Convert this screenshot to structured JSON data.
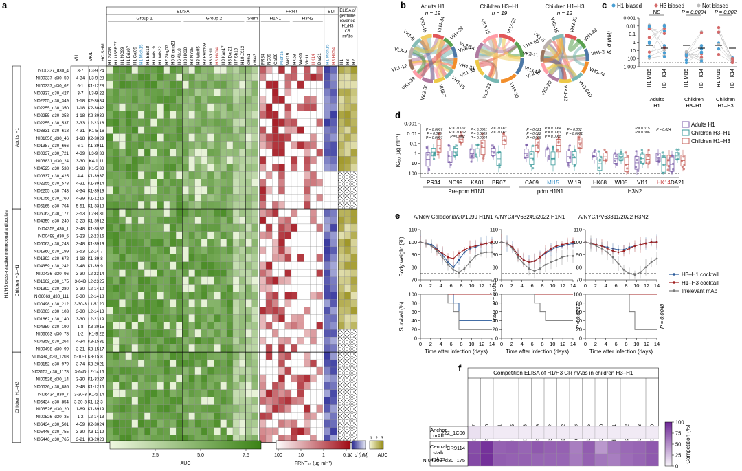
{
  "panel_labels": {
    "a": "a",
    "b": "b",
    "c": "c",
    "d": "d",
    "e": "e",
    "f": "f"
  },
  "panel_a": {
    "elisa_title": "ELISA",
    "frnt_title": "FRNT",
    "bli_title": "BLI",
    "germline_title": [
      "ELISA of",
      "germline",
      "reverted",
      "H1/H3",
      "CR",
      "mAbs"
    ],
    "group1_label": "Group 1",
    "group2_label": "Group 2",
    "stem_label": "Stem",
    "h1n1_label": "H1N1",
    "h3n2_label": "H3N2",
    "vh_header": "VH",
    "vkl_header": "VK/L",
    "hcshm_header": "HC SHM",
    "side_title": "H1/H3 cross-reactive monoclonal antibodies",
    "group_names": [
      "Adults H1",
      "Children H3–H1",
      "Children H1–H3"
    ],
    "columns": [
      {
        "t": "H1 SC18",
        "c": "#000"
      },
      {
        "t": "H1 USSR77",
        "c": "#000"
      },
      {
        "t": "H1 NC99",
        "c": "#000"
      },
      {
        "t": "H1 Bris07",
        "c": "#000"
      },
      {
        "t": "H1 Cal09",
        "c": "#000"
      },
      {
        "t": "H1 Mich15",
        "c": "#3a8fc4"
      },
      {
        "t": "H1 Bris18",
        "c": "#000"
      },
      {
        "t": "H1 Wis19",
        "c": "#000"
      },
      {
        "t": "H1 Wis22",
        "c": "#000"
      },
      {
        "t": "H2 Sing57",
        "c": "#000"
      },
      {
        "t": "H5 Ghana21",
        "c": "#000"
      },
      {
        "t": "H6 Ah18",
        "c": "#000"
      },
      {
        "t": "H3 HK68",
        "c": "#000"
      },
      {
        "t": "H3 NY95",
        "c": "#000"
      },
      {
        "t": "H3 Wis05",
        "c": "#000"
      },
      {
        "t": "H3 Perth09",
        "c": "#000"
      },
      {
        "t": "H3 Vic11",
        "c": "#000"
      },
      {
        "t": "H3 HK14",
        "c": "#c43a3a"
      },
      {
        "t": "H3 Kan17",
        "c": "#000"
      },
      {
        "t": "H3 Dar21",
        "c": "#000"
      },
      {
        "t": "H7 Sh13",
        "c": "#000"
      },
      {
        "t": "H10 JX13",
        "c": "#000"
      },
      {
        "t": "cH6/1",
        "c": "#000"
      },
      {
        "t": "cH4/3",
        "c": "#000"
      },
      {
        "t": "PR34",
        "c": "#000"
      },
      {
        "t": "NC99",
        "c": "#000"
      },
      {
        "t": "Cal09",
        "c": "#000"
      },
      {
        "t": "Mich15",
        "c": "#3a8fc4"
      },
      {
        "t": "Wis19",
        "c": "#000"
      },
      {
        "t": "HK68",
        "c": "#000"
      },
      {
        "t": "Wis05",
        "c": "#000"
      },
      {
        "t": "Vic11",
        "c": "#000"
      },
      {
        "t": "HK14",
        "c": "#c43a3a"
      },
      {
        "t": "Dar21",
        "c": "#000"
      },
      {
        "t": "H1 Mich15",
        "c": "#3a8fc4"
      },
      {
        "t": "H3 HK14",
        "c": "#c43a3a"
      },
      {
        "t": "H1",
        "c": "#000"
      },
      {
        "t": "H3",
        "c": "#000"
      },
      {
        "t": "H2",
        "c": "#000"
      }
    ],
    "rows": [
      [
        "NI00337_d30_4",
        "3-7",
        "L3-9",
        "24"
      ],
      [
        "NI00337_d30_59",
        "4-34",
        "L3-9",
        "28"
      ],
      [
        "NI00337_d30_62",
        "6-1",
        "K1-12",
        "28"
      ],
      [
        "NI00337_d30_427",
        "3-7",
        "L3-9",
        "22"
      ],
      [
        "NI02255_d30_349",
        "1-18",
        "K2-30",
        "34"
      ],
      [
        "NI02255_d30_350",
        "1-18",
        "K2-30",
        "42"
      ],
      [
        "NI02255_d30_358",
        "1-18",
        "K2-30",
        "32"
      ],
      [
        "NI02255_d30_537",
        "3-33",
        "L2-23",
        "18"
      ],
      [
        "NI03831_d30_618",
        "4-31",
        "K1-5",
        "16"
      ],
      [
        "NI01056_d30_46",
        "1-18",
        "K2-30",
        "29"
      ],
      [
        "NI01387_d30_666",
        "6-1",
        "K1-39",
        "11"
      ],
      [
        "NI00337_d30_721",
        "4-39",
        "L3-9",
        "33"
      ],
      [
        "NI03831_d30_24",
        "3-30",
        "K4-1",
        "11"
      ],
      [
        "NI04525_d30_538",
        "1-18",
        "K1-5",
        "33"
      ],
      [
        "NI00337_d30_425",
        "4-4",
        "K1-39",
        "37"
      ],
      [
        "NI02255_d30_578",
        "4-31",
        "K1-39",
        "14"
      ],
      [
        "NI02255_d30_743",
        "4-34",
        "K1-39",
        "19"
      ],
      [
        "NI01056_d30_760",
        "4-39",
        "K1-12",
        "16"
      ],
      [
        "NI06165_d30_764",
        "5-51",
        "K1-33",
        "18"
      ],
      [
        "NI06063_d30_177",
        "3-53",
        "L2-8",
        "31"
      ],
      [
        "NI04359_d30_240",
        "3-23",
        "K1-39",
        "12"
      ],
      [
        "NI04359_d30_1",
        "3-48",
        "K1-39",
        "32"
      ],
      [
        "NI00498_d30_5",
        "3-23",
        "L2-23",
        "16"
      ],
      [
        "NI06063_d30_243",
        "3-48",
        "K1-39",
        "19"
      ],
      [
        "NI01960_d30_199",
        "3-53",
        "L2-14",
        "7"
      ],
      [
        "NI01392_d30_672",
        "1-18",
        "K1-39",
        "8"
      ],
      [
        "NI04359_d30_242",
        "3-48",
        "K1-39",
        "9"
      ],
      [
        "NI00436_d30_96",
        "3-30",
        "L2-23",
        "14"
      ],
      [
        "NI01662_d30_175",
        "3-64D",
        "L2-23",
        "25"
      ],
      [
        "NI01392_d30_280",
        "3-30",
        "L2-14",
        "10"
      ],
      [
        "NI06063_d30_111",
        "3-30",
        "L2-14",
        "18"
      ],
      [
        "NI00498_d30_212",
        "3-30-3",
        "L1-51",
        "20"
      ],
      [
        "NI06063_d30_103",
        "3-30",
        "L2-14",
        "13"
      ],
      [
        "NI01662_d30_140",
        "3-30",
        "L2-23",
        "19"
      ],
      [
        "NI04359_d30_190",
        "1-8",
        "K3-20",
        "15"
      ],
      [
        "NI06063_d30_78",
        "1-2",
        "K1-9",
        "22"
      ],
      [
        "NI04359_d30_264",
        "4-34",
        "K3-15",
        "31"
      ],
      [
        "NI00498_d30_99",
        "3-21",
        "K3-15",
        "17"
      ],
      [
        "NI06434_d30_1203",
        "5-10-1",
        "K3-15",
        "8"
      ],
      [
        "NI03152_d30_979",
        "3-74",
        "K3-20",
        "21"
      ],
      [
        "NI03152_d30_1178",
        "3-64D",
        "L2-14",
        "16"
      ],
      [
        "NI00526_d30_14",
        "3-30",
        "K1-33",
        "27"
      ],
      [
        "NI00526_d30_886",
        "3-48",
        "K1-12",
        "16"
      ],
      [
        "NI06434_d30_7",
        "3-30-3",
        "K1-5",
        "14"
      ],
      [
        "NI06434_d30_854",
        "3-30-3",
        "K1-12",
        "3"
      ],
      [
        "NI03526_d30_20",
        "1-69",
        "K1-39",
        "19"
      ],
      [
        "NI00526_d30_35",
        "1-2",
        "L2-14",
        "13"
      ],
      [
        "NI06434_d30_501",
        "4-59",
        "K2-30",
        "24"
      ],
      [
        "NI05446_d30_755",
        "3-30",
        "K3-11",
        "19"
      ],
      [
        "NI05446_d30_765",
        "3-21",
        "K3-20",
        "23"
      ]
    ],
    "group_sizes": [
      19,
      19,
      12
    ],
    "legend": {
      "auc_ticks": [
        "2.5",
        "5.0",
        "7.5"
      ],
      "auc_label": "AUC",
      "frnt_ticks": [
        "100",
        "10",
        "1",
        "0.1"
      ],
      "frnt_label": "FRNT₅₀ (µg ml⁻¹)",
      "kd_label": "K_d (nM)",
      "germ_ticks": [
        "1",
        "2",
        "3"
      ],
      "germ_label": "AUC"
    }
  },
  "panel_b": {
    "titles": [
      [
        "Adults H1",
        "n = 19"
      ],
      [
        "Children H3–H1",
        "n = 19"
      ],
      [
        "Children H1–H3",
        "n = 12"
      ]
    ],
    "labels": [
      [
        "VH4-34",
        "VH4-39",
        "VH6-1",
        "VH4-31",
        "VH1-18",
        "VH3-7",
        "VK2-30",
        "VK1-39",
        "VK1-12",
        "VL3-9",
        "VK1-5",
        "VK1-15"
      ],
      [
        "VH3-23",
        "VH3-53",
        "VH3-48",
        "VH3-30",
        "VL2-23",
        "VK1-39",
        "VL2-14",
        "VK3-15"
      ],
      [
        "VH3-30",
        "VH3-48",
        "VH1-2",
        "VH3-74",
        "VH3-64D",
        "VK1-12",
        "VK3-20",
        "VL2-14",
        "VK3-11",
        "VK1-5",
        "VK3-15"
      ]
    ]
  },
  "panel_c": {
    "legend": [
      "H1 biased",
      "H3 biased",
      "Not biased"
    ],
    "colors": {
      "h1": "#4a9fd4",
      "h3": "#d46a6a",
      "nb": "#bbbbbb"
    },
    "ylabel": "K_d (nM)",
    "yticks": [
      "0.001",
      "0.01",
      "0.1",
      "1",
      "10",
      "100",
      "1,000"
    ],
    "pvals": [
      "NS",
      "P = 0.0004",
      "P = 0.002"
    ],
    "xticks": [
      "H1 MI15",
      "H3 HK14",
      "H1 MI15",
      "H3 HK14",
      "H1 MI15",
      "H3 HK14"
    ],
    "groups": [
      "Adults",
      "H1",
      "Children",
      "H3–H1",
      "Children",
      "H1–H3"
    ]
  },
  "panel_d": {
    "legend": [
      "Adults H1",
      "Children H3–H1",
      "Children H1–H3"
    ],
    "colors": [
      "#7b5ea8",
      "#3a9a9a",
      "#c4605a"
    ],
    "ylabel": "IC₅₀ (µg ml⁻¹)",
    "yticks": [
      "0.001",
      "0.01",
      "0.1",
      "1",
      "10",
      "100"
    ],
    "viruses": [
      {
        "n": "PR34",
        "c": "#000"
      },
      {
        "n": "NC99",
        "c": "#000"
      },
      {
        "n": "KA01",
        "c": "#000"
      },
      {
        "n": "BR07",
        "c": "#000"
      },
      {
        "n": "CA09",
        "c": "#000"
      },
      {
        "n": "MI15",
        "c": "#3a8fc4"
      },
      {
        "n": "WI19",
        "c": "#000"
      },
      {
        "n": "HK68",
        "c": "#000"
      },
      {
        "n": "WI05",
        "c": "#000"
      },
      {
        "n": "VI11",
        "c": "#000"
      },
      {
        "n": "HK14",
        "c": "#c43a3a"
      },
      {
        "n": "DA21",
        "c": "#000"
      }
    ],
    "group_labels": [
      "Pre-pdm H1N1",
      "pdm H1N1",
      "H3N2"
    ],
    "pvals": [
      [
        "P = 0.0007",
        "P = 0.025",
        "P = 0.0007"
      ],
      [
        "P = 0.0001",
        "P = 0.0002",
        "P = 0.002"
      ],
      [
        "P < 0.0001",
        "P = 0.0009",
        "P = 0.0004"
      ],
      [
        "P = 0.0001",
        "P = 0.0001"
      ],
      [
        "P = 0.021",
        "P = 0.022",
        "P = 0.005"
      ],
      [
        "P = 0.0004",
        "P = 0.0001",
        "P = 0.0005"
      ],
      [
        "P = 0.002",
        "P = 0.0001"
      ],
      [
        "P = 0.015",
        "P = 0.006"
      ],
      [
        "P = 0.024"
      ]
    ]
  },
  "panel_e": {
    "titles": [
      "A/New Caledonia/20/1999 H1N1",
      "A/NYC/PV63249/2022 H1N1",
      "A/NYC/PV63311/2022 H3N2"
    ],
    "bw_label": "Body weight (%)",
    "surv_label": "Survival (%)",
    "xlabel": "Time after infection (days)",
    "xticks": [
      "0",
      "2",
      "4",
      "6",
      "8",
      "10",
      "12",
      "14"
    ],
    "bw_yticks": [
      "70",
      "80",
      "90",
      "100",
      "110"
    ],
    "surv_yticks": [
      "0",
      "20",
      "40",
      "60",
      "80",
      "100"
    ],
    "pvals": [
      "NS",
      "P = 0.0161",
      "P = 0.0217",
      "P = 0.0048"
    ],
    "legend": [
      "H3–H1 cocktail",
      "H1–H3 cocktail",
      "Irrelevant mAb"
    ],
    "colors": [
      "#2a5a9a",
      "#a02020",
      "#777777"
    ],
    "bw_data": [
      [
        [
          100,
          99,
          98,
          95,
          90,
          84,
          80,
          86,
          92,
          95,
          96,
          98,
          99,
          100
        ],
        [
          100,
          99,
          97,
          94,
          91,
          88,
          87,
          91,
          94,
          96,
          97,
          98,
          99,
          100
        ],
        [
          100,
          99,
          97,
          93,
          88,
          82,
          78,
          76,
          79,
          84,
          89,
          91,
          92,
          92
        ]
      ],
      [
        [
          100,
          99,
          96,
          90,
          86,
          84,
          85,
          88,
          91,
          94,
          96,
          97,
          98,
          99
        ],
        [
          100,
          99,
          96,
          90,
          86,
          84,
          85,
          88,
          92,
          95,
          97,
          98,
          99,
          100
        ],
        [
          100,
          99,
          95,
          88,
          83,
          79,
          77,
          79,
          82,
          84,
          86,
          88,
          89,
          89
        ]
      ],
      [
        [
          100,
          99,
          98,
          97,
          96,
          95,
          94,
          94,
          96,
          97,
          98,
          99,
          100,
          100
        ],
        [
          100,
          99,
          98,
          97,
          95,
          93,
          92,
          93,
          95,
          97,
          98,
          99,
          100,
          100
        ],
        [
          100,
          99,
          97,
          95,
          92,
          88,
          83,
          78,
          75,
          74,
          76,
          80,
          84,
          87
        ]
      ]
    ],
    "surv_data": [
      [
        [
          100,
          100,
          100,
          100,
          100,
          100,
          80,
          40,
          40,
          40,
          40,
          40,
          40,
          40
        ],
        [
          100,
          100,
          100,
          100,
          100,
          100,
          100,
          100,
          100,
          100,
          100,
          100,
          100,
          100
        ],
        [
          100,
          100,
          100,
          100,
          100,
          80,
          60,
          20,
          20,
          20,
          20,
          20,
          20,
          20
        ]
      ],
      [
        [
          100,
          100,
          100,
          100,
          100,
          100,
          100,
          100,
          100,
          100,
          100,
          100,
          100,
          100
        ],
        [
          100,
          100,
          100,
          100,
          100,
          100,
          100,
          100,
          100,
          100,
          100,
          100,
          100,
          100
        ],
        [
          100,
          100,
          100,
          100,
          100,
          100,
          80,
          60,
          40,
          40,
          40,
          40,
          40,
          40
        ]
      ],
      [
        [
          100,
          100,
          100,
          100,
          100,
          100,
          100,
          100,
          100,
          100,
          100,
          100,
          100,
          100
        ],
        [
          100,
          100,
          100,
          100,
          100,
          100,
          100,
          100,
          100,
          100,
          100,
          100,
          100,
          100
        ],
        [
          100,
          100,
          100,
          100,
          100,
          100,
          100,
          100,
          60,
          20,
          20,
          20,
          20,
          20
        ]
      ]
    ]
  },
  "panel_f": {
    "title": "Competition ELISA of H1/H3 CR mAbs in children H3–H1",
    "columns": [
      "NI06063_d30_177",
      "NI04359_d30_240",
      "NI04359_d30_1",
      "NI00498_d30_5",
      "NI06063_d30_243",
      "NI01960_d30_199",
      "NI01392_d30_672",
      "NI04359_d30_242",
      "NI00436_d30_96",
      "NI01662_d30_175",
      "NI01392_d30_280",
      "NI06063_d30_111",
      "NI00498_d30_212",
      "NI06063_d30_103",
      "NI01662_d30_140"
    ],
    "anchor_label": [
      "Anchor",
      "mAb"
    ],
    "anchor_row": "222_1C06",
    "stalk_label": [
      "Central",
      "stalk",
      "mAbs"
    ],
    "stalk_rows": [
      "CR9114",
      "NI04359_d30_175"
    ],
    "values": [
      [
        10,
        5,
        5,
        5,
        5,
        5,
        5,
        5,
        5,
        5,
        5,
        5,
        5,
        5,
        5
      ],
      [
        82,
        95,
        72,
        74,
        70,
        76,
        72,
        72,
        58,
        74,
        45,
        62,
        68,
        70,
        76
      ],
      [
        84,
        96,
        74,
        72,
        72,
        70,
        70,
        70,
        60,
        72,
        62,
        58,
        66,
        70,
        76
      ]
    ],
    "colorbar_ticks": [
      "0",
      "25",
      "50",
      "75",
      "100"
    ],
    "colorbar_label": "Competition (%)"
  }
}
